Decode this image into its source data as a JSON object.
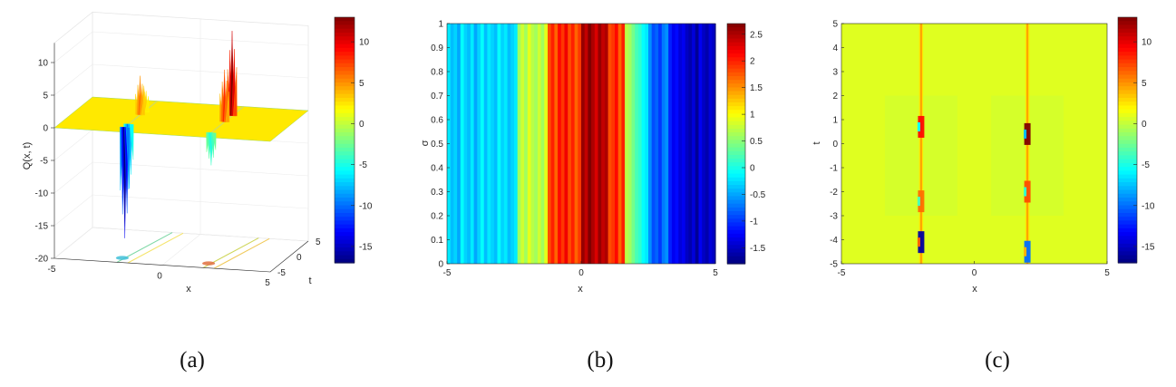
{
  "chart_data": [
    {
      "panel": "a",
      "type": "surface",
      "caption": "(a)",
      "xlabel": "x",
      "ylabel": "t",
      "zlabel": "Q(x, t)",
      "x_ticks": [
        "-5",
        "0",
        "5"
      ],
      "t_ticks": [
        "-5",
        "0",
        "5"
      ],
      "z_ticks": [
        "10",
        "5",
        "0",
        "-5",
        "-10",
        "-15",
        "-20"
      ],
      "xlim": [
        -5,
        5
      ],
      "tlim": [
        -5,
        5
      ],
      "zlim": [
        -20,
        13
      ],
      "colorbar": {
        "ticks": [
          "10",
          "5",
          "0",
          "-5",
          "-10",
          "-15"
        ],
        "range": [
          -17,
          13
        ]
      },
      "baseline": 0,
      "peaks": [
        {
          "x": -2,
          "t": -3.5,
          "z": -17
        },
        {
          "x": -2,
          "t": -2.5,
          "z": -10
        },
        {
          "x": -2,
          "t": 0.5,
          "z": 6
        },
        {
          "x": -2,
          "t": 1.5,
          "z": 4
        },
        {
          "x": 2,
          "t": -3.5,
          "z": -5
        },
        {
          "x": 2,
          "t": 0,
          "z": 8
        },
        {
          "x": 2,
          "t": 2,
          "z": 13
        }
      ]
    },
    {
      "panel": "b",
      "type": "heatmap",
      "caption": "(b)",
      "xlabel": "x",
      "ylabel": "σ",
      "x_ticks": [
        "-5",
        "0",
        "5"
      ],
      "y_ticks": [
        "0",
        "0.1",
        "0.2",
        "0.3",
        "0.4",
        "0.5",
        "0.6",
        "0.7",
        "0.8",
        "0.9",
        "1"
      ],
      "xlim": [
        -5,
        5
      ],
      "ylim": [
        0,
        1
      ],
      "colorbar": {
        "ticks": [
          "2.5",
          "2",
          "1.5",
          "1",
          "0.5",
          "0",
          "-0.5",
          "-1",
          "-1.5"
        ],
        "range": [
          -1.8,
          2.7
        ]
      },
      "stripe_values": [
        -0.2,
        -0.4,
        -0.3,
        -0.5,
        -0.1,
        -0.3,
        -0.4,
        -0.2,
        -0.5,
        -0.3,
        -0.1,
        -0.4,
        -0.2,
        -0.3,
        -0.4,
        -0.1,
        -0.3,
        -0.2,
        -0.4,
        -0.3,
        -0.2,
        0.6,
        0.8,
        0.6,
        0.9,
        0.7,
        0.6,
        0.8,
        0.6,
        0.9,
        1.8,
        2.0,
        1.7,
        2.1,
        1.9,
        2.2,
        1.8,
        2.0,
        1.7,
        1.9,
        2.6,
        2.4,
        2.7,
        2.5,
        2.3,
        2.6,
        2.4,
        2.5,
        1.8,
        1.9,
        2.1,
        1.7,
        2.0,
        0.7,
        0.6,
        0.4,
        0.2,
        0.1,
        -0.1,
        -0.2,
        -0.6,
        -0.9,
        -0.8,
        -1.0,
        -0.7,
        -0.6,
        -1.1,
        -1.3,
        -1.2,
        -1.4,
        -1.3,
        -1.5,
        -1.6,
        -1.4,
        -1.7,
        -1.3,
        -1.5,
        -1.6,
        -1.4,
        -1.5
      ]
    },
    {
      "panel": "c",
      "type": "heatmap",
      "caption": "(c)",
      "xlabel": "x",
      "ylabel": "t",
      "x_ticks": [
        "-5",
        "0",
        "5"
      ],
      "y_ticks": [
        "-5",
        "-4",
        "-3",
        "-2",
        "-1",
        "0",
        "1",
        "2",
        "3",
        "4",
        "5"
      ],
      "xlim": [
        -5,
        5
      ],
      "ylim": [
        -5,
        5
      ],
      "colorbar": {
        "ticks": [
          "10",
          "5",
          "0",
          "-5",
          "-10",
          "-15"
        ],
        "range": [
          -17,
          13
        ]
      },
      "background": 0.8,
      "lines": [
        {
          "x": -2,
          "spots": [
            {
              "t": 0.7,
              "value": 9
            },
            {
              "t": -2.4,
              "value": 6
            },
            {
              "t": -4.1,
              "value": -16
            }
          ]
        },
        {
          "x": 2,
          "spots": [
            {
              "t": 0.4,
              "value": 13
            },
            {
              "t": -2.0,
              "value": 7
            },
            {
              "t": -4.5,
              "value": -10
            }
          ]
        }
      ]
    }
  ]
}
